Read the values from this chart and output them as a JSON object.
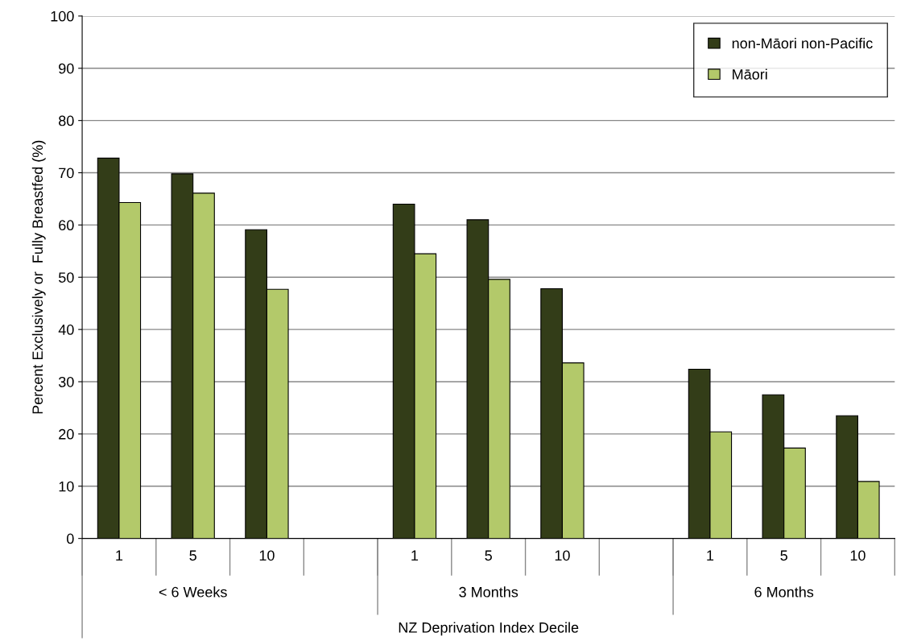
{
  "chart_data": {
    "type": "bar",
    "xlabel": "NZ Deprivation Index Decile",
    "ylabel": "Percent Exclusively or  Fully Breastfed (%)",
    "categories": [
      "1",
      "5",
      "10",
      null,
      "1",
      "5",
      "10",
      null,
      "1",
      "5",
      "10"
    ],
    "series": [
      {
        "name": "non-Māori non-Pacific",
        "color": "#333d18",
        "values": [
          72.8,
          69.8,
          59.1,
          null,
          64.0,
          61.0,
          47.8,
          null,
          32.4,
          27.5,
          23.5
        ]
      },
      {
        "name": "Māori",
        "color": "#b3c96a",
        "values": [
          64.3,
          66.1,
          47.7,
          null,
          54.5,
          49.6,
          33.6,
          null,
          20.4,
          17.3,
          10.9
        ]
      }
    ],
    "annotations": [
      "< 6 Weeks",
      "3 Months",
      "6 Months"
    ],
    "ylim": [
      0,
      100
    ],
    "yticks": [
      0,
      10,
      20,
      30,
      40,
      50,
      60,
      70,
      80,
      90,
      100
    ],
    "grid": "y",
    "legend": "top right"
  }
}
